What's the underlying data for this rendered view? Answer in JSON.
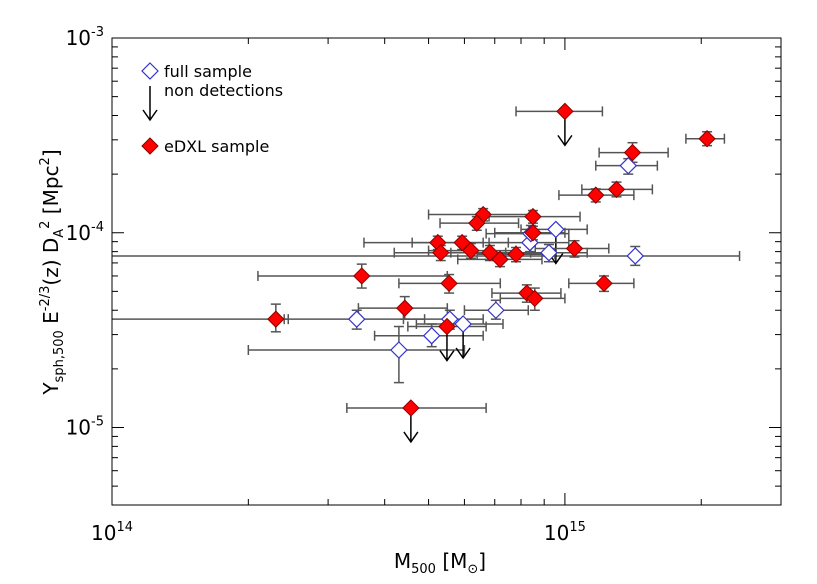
{
  "chart_data": {
    "type": "scatter",
    "xlabel": "M_{500} [M_{⊙}]",
    "ylabel": "Y_{sph,500} E^{-2/3}(z) D_{A}^{2} [Mpc^{2}]",
    "log_x": true,
    "log_y": true,
    "xlim": [
      100000000000000.0,
      3000000000000000.0
    ],
    "ylim": [
      4e-06,
      0.001
    ],
    "xticks": [
      {
        "value": 100000000000000.0,
        "label": "10^{14}"
      },
      {
        "value": 1000000000000000.0,
        "label": "10^{15}"
      }
    ],
    "yticks": [
      {
        "value": 1e-05,
        "label": "10^{-5}"
      },
      {
        "value": 0.0001,
        "label": "10^{-4}"
      },
      {
        "value": 0.001,
        "label": "10^{-3}"
      }
    ],
    "limit_label": "non detections",
    "error_color": "#555555",
    "series": [
      {
        "name": "full sample",
        "color": "#3333cc",
        "filled": false,
        "x": [
          1380000000000000.0,
          1430000000000000.0,
          955000000000000.0,
          837000000000000.0,
          922000000000000.0,
          347000000000000.0,
          430000000000000.0,
          508000000000000.0,
          557000000000000.0,
          596000000000000.0,
          704000000000000.0,
          841000000000000.0
        ],
        "y": [
          0.000221,
          7.6e-05,
          0.000104,
          8.9e-05,
          7.9e-05,
          3.6e-05,
          2.5e-05,
          2.96e-05,
          3.6e-05,
          3.4e-05,
          4e-05,
          9.9e-05
        ],
        "x_lo": [
          1170000000000000.0,
          50000000000000.0,
          800000000000000.0,
          680000000000000.0,
          740000000000000.0,
          240000000000000.0,
          200000000000000.0,
          380000000000000.0,
          440000000000000.0,
          470000000000000.0,
          600000000000000.0,
          670000000000000.0
        ],
        "x_hi": [
          1600000000000000.0,
          2430000000000000.0,
          1120000000000000.0,
          1020000000000000.0,
          1120000000000000.0,
          490000000000000.0,
          600000000000000.0,
          660000000000000.0,
          660000000000000.0,
          730000000000000.0,
          830000000000000.0,
          1020000000000000.0
        ],
        "y_lo": [
          0.0002,
          6.8e-05,
          null,
          8e-05,
          7.1e-05,
          3.2e-05,
          1.7e-05,
          2.6e-05,
          3.2e-05,
          null,
          3.6e-05,
          9e-05
        ],
        "y_hi": [
          0.00024,
          8.5e-05,
          null,
          9.8e-05,
          8.7e-05,
          4e-05,
          3.3e-05,
          3.4e-05,
          4e-05,
          null,
          4.5e-05,
          0.000109
        ],
        "upper_limit": [
          false,
          false,
          true,
          false,
          false,
          false,
          false,
          false,
          false,
          true,
          false,
          false
        ]
      },
      {
        "name": "eDXL sample",
        "color": "#ff0000",
        "filled": true,
        "x": [
          1000000000000000.0,
          1410000000000000.0,
          2060000000000000.0,
          1300000000000000.0,
          1170000000000000.0,
          850000000000000.0,
          660000000000000.0,
          639000000000000.0,
          850000000000000.0,
          524000000000000.0,
          593000000000000.0,
          532000000000000.0,
          620000000000000.0,
          683000000000000.0,
          719000000000000.0,
          780000000000000.0,
          1050000000000000.0,
          356000000000000.0,
          555000000000000.0,
          1220000000000000.0,
          824000000000000.0,
          858000000000000.0,
          443000000000000.0,
          230000000000000.0,
          549000000000000.0,
          457000000000000.0
        ],
        "y": [
          0.00042,
          0.000258,
          0.000304,
          0.000167,
          0.000156,
          0.000121,
          0.000124,
          0.000112,
          0.0001,
          8.9e-05,
          8.9e-05,
          7.9e-05,
          8.1e-05,
          7.9e-05,
          7.3e-05,
          7.75e-05,
          8.3e-05,
          6e-05,
          5.5e-05,
          5.5e-05,
          4.9e-05,
          4.6e-05,
          4.1e-05,
          3.6e-05,
          3.3e-05,
          1.26e-05
        ],
        "x_lo": [
          780000000000000.0,
          1190000000000000.0,
          1850000000000000.0,
          1090000000000000.0,
          970000000000000.0,
          680000000000000.0,
          500000000000000.0,
          530000000000000.0,
          700000000000000.0,
          360000000000000.0,
          460000000000000.0,
          420000000000000.0,
          500000000000000.0,
          560000000000000.0,
          580000000000000.0,
          640000000000000.0,
          860000000000000.0,
          210000000000000.0,
          430000000000000.0,
          1020000000000000.0,
          690000000000000.0,
          720000000000000.0,
          350000000000000.0,
          80000000000000.0,
          450000000000000.0,
          330000000000000.0
        ],
        "x_hi": [
          1210000000000000.0,
          1690000000000000.0,
          2250000000000000.0,
          1560000000000000.0,
          1420000000000000.0,
          1080000000000000.0,
          840000000000000.0,
          790000000000000.0,
          1000000000000000.0,
          660000000000000.0,
          750000000000000.0,
          670000000000000.0,
          780000000000000.0,
          840000000000000.0,
          890000000000000.0,
          950000000000000.0,
          1250000000000000.0,
          550000000000000.0,
          720000000000000.0,
          1420000000000000.0,
          980000000000000.0,
          1000000000000000.0,
          550000000000000.0,
          245000000000000.0,
          670000000000000.0,
          670000000000000.0
        ],
        "y_lo": [
          null,
          0.00023,
          0.00028,
          0.000153,
          0.000144,
          0.000112,
          0.000115,
          0.000103,
          9.2e-05,
          8.2e-05,
          8.2e-05,
          7.2e-05,
          7.4e-05,
          7.2e-05,
          6.7e-05,
          7.1e-05,
          7.5e-05,
          5.2e-05,
          4.9e-05,
          5e-05,
          4.4e-05,
          4e-05,
          3.6e-05,
          3.1e-05,
          null,
          null
        ],
        "y_hi": [
          null,
          0.00029,
          0.00033,
          0.000182,
          0.000168,
          0.00013,
          0.000133,
          0.000121,
          0.000108,
          9.6e-05,
          9.6e-05,
          8.6e-05,
          8.8e-05,
          8.6e-05,
          7.9e-05,
          8.4e-05,
          9.1e-05,
          6.9e-05,
          6.1e-05,
          6e-05,
          5.4e-05,
          5.2e-05,
          4.7e-05,
          4.3e-05,
          null,
          null
        ],
        "upper_limit": [
          true,
          false,
          false,
          false,
          false,
          false,
          false,
          false,
          false,
          false,
          false,
          false,
          false,
          false,
          false,
          false,
          false,
          false,
          false,
          false,
          false,
          false,
          false,
          false,
          true,
          true
        ]
      }
    ]
  }
}
